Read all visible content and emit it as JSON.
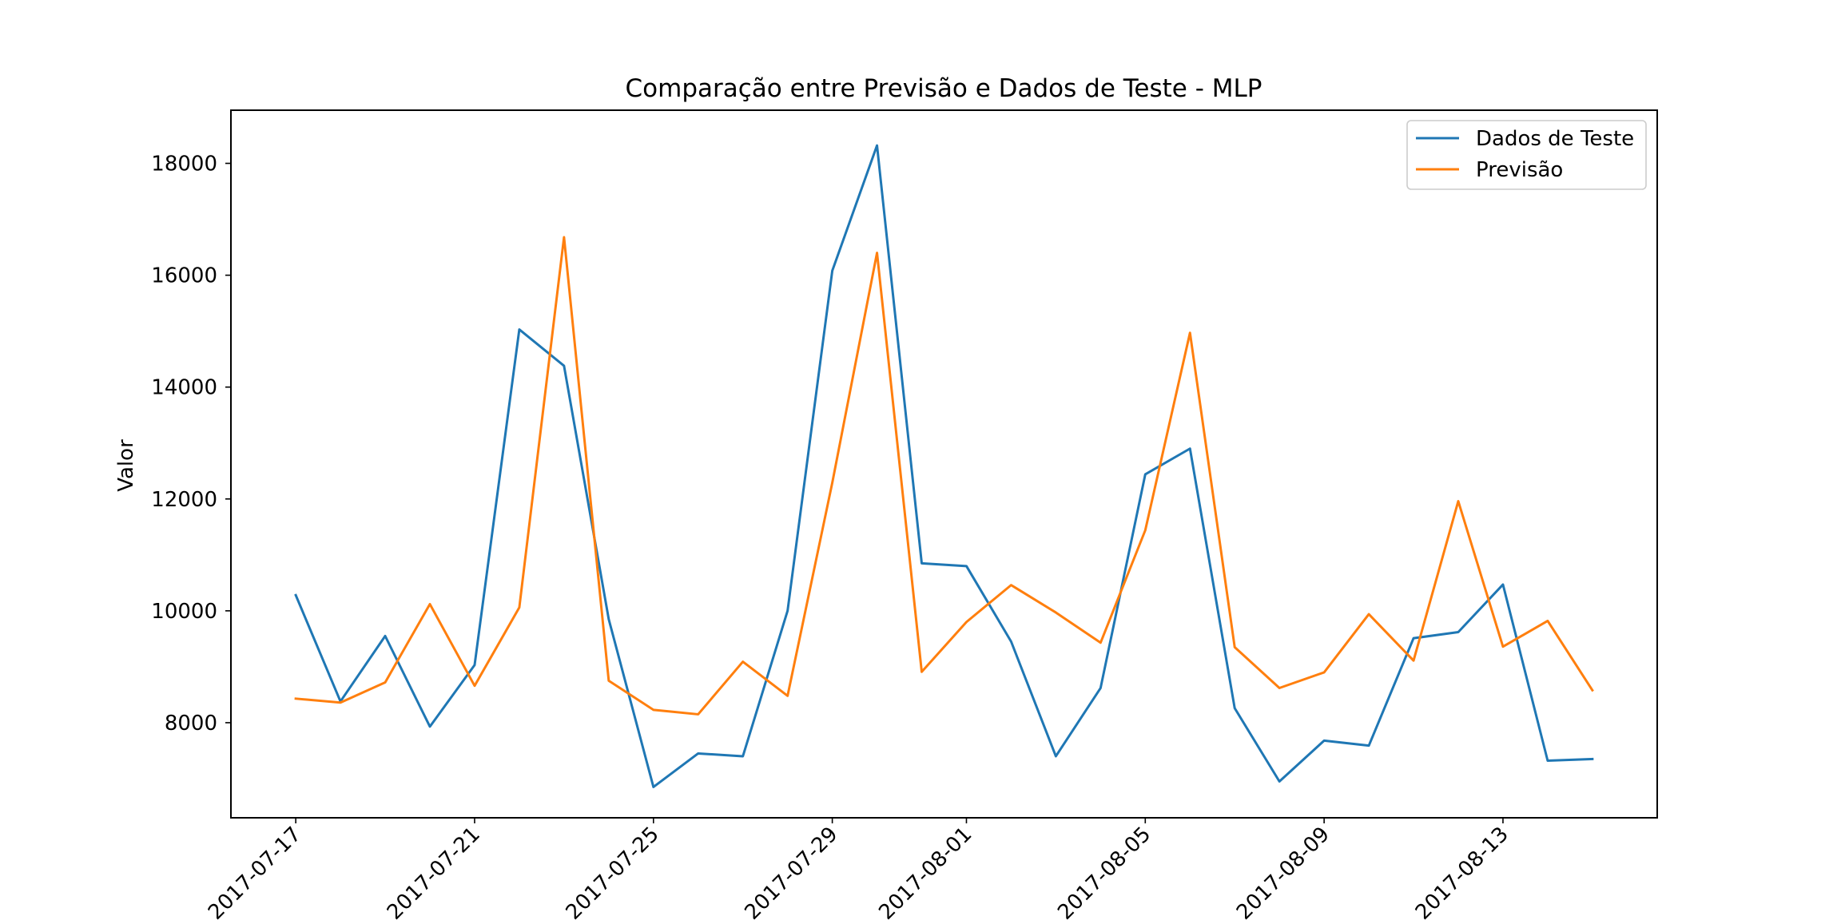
{
  "chart_data": {
    "type": "line",
    "title": "Comparação entre Previsão e Dados de Teste - MLP",
    "xlabel": "",
    "ylabel": "Valor",
    "x": [
      "2017-07-17",
      "2017-07-18",
      "2017-07-19",
      "2017-07-20",
      "2017-07-21",
      "2017-07-22",
      "2017-07-23",
      "2017-07-24",
      "2017-07-25",
      "2017-07-26",
      "2017-07-27",
      "2017-07-28",
      "2017-07-29",
      "2017-07-30",
      "2017-07-31",
      "2017-08-01",
      "2017-08-02",
      "2017-08-03",
      "2017-08-04",
      "2017-08-05",
      "2017-08-06",
      "2017-08-07",
      "2017-08-08",
      "2017-08-09",
      "2017-08-10",
      "2017-08-11",
      "2017-08-12",
      "2017-08-13",
      "2017-08-14",
      "2017-08-15"
    ],
    "xticks": [
      "2017-07-17",
      "2017-07-21",
      "2017-07-25",
      "2017-07-29",
      "2017-08-01",
      "2017-08-05",
      "2017-08-09",
      "2017-08-13"
    ],
    "xlim": [
      "2017-07-15.55",
      "2017-08-16.45"
    ],
    "yticks": [
      8000,
      10000,
      12000,
      14000,
      16000,
      18000
    ],
    "ylim": [
      6300,
      18950
    ],
    "grid": false,
    "legend_position": "top-right",
    "series": [
      {
        "name": "Dados de Teste",
        "color": "#1f77b4",
        "values": [
          10280,
          8380,
          9550,
          7930,
          9030,
          15030,
          14380,
          9850,
          6850,
          7450,
          7400,
          10000,
          16080,
          18320,
          10850,
          10800,
          9450,
          7400,
          8620,
          12440,
          12900,
          8260,
          6950,
          7680,
          7590,
          9510,
          9620,
          10470,
          7320,
          7350
        ]
      },
      {
        "name": "Previsão",
        "color": "#ff7f0e",
        "values": [
          8430,
          8360,
          8720,
          10120,
          8660,
          10060,
          16680,
          8750,
          8230,
          8150,
          9090,
          8480,
          12290,
          16400,
          8910,
          9800,
          10460,
          9970,
          9430,
          11440,
          14970,
          9350,
          8620,
          8900,
          9940,
          9110,
          11960,
          9360,
          9820,
          8580
        ]
      }
    ]
  }
}
